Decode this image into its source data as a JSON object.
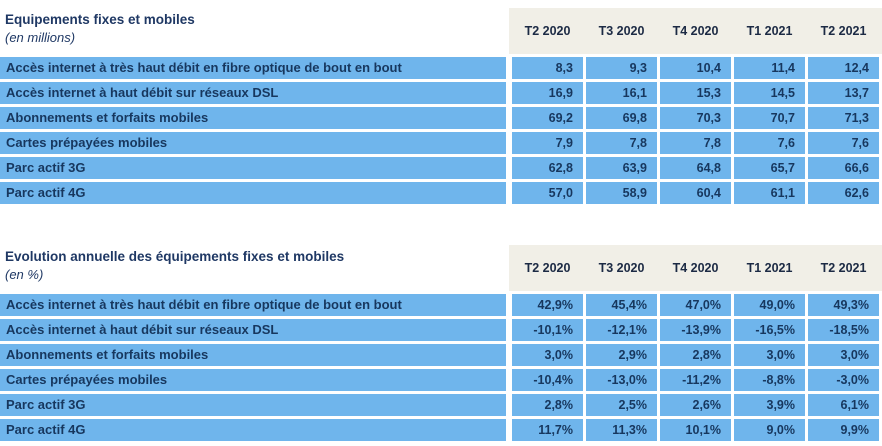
{
  "colors": {
    "cell_blue": "#6fb5ec",
    "header_cream": "#f1efe7",
    "row_text_navy": "#17375e",
    "title_navy": "#1f3864",
    "quarter_header_text": "#1c2a44"
  },
  "tables": [
    {
      "title": "Equipements fixes et mobiles",
      "subtitle": "(en millions)",
      "columns": [
        "T2 2020",
        "T3 2020",
        "T4 2020",
        "T1 2021",
        "T2 2021"
      ],
      "rows": [
        {
          "label": "Accès internet à très haut débit en fibre optique de bout en bout",
          "values": [
            "8,3",
            "9,3",
            "10,4",
            "11,4",
            "12,4"
          ]
        },
        {
          "label": "Accès internet à haut débit sur réseaux DSL",
          "values": [
            "16,9",
            "16,1",
            "15,3",
            "14,5",
            "13,7"
          ]
        },
        {
          "label": "Abonnements et forfaits mobiles",
          "values": [
            "69,2",
            "69,8",
            "70,3",
            "70,7",
            "71,3"
          ]
        },
        {
          "label": "Cartes prépayées mobiles",
          "values": [
            "7,9",
            "7,8",
            "7,8",
            "7,6",
            "7,6"
          ]
        },
        {
          "label": "Parc actif 3G",
          "values": [
            "62,8",
            "63,9",
            "64,8",
            "65,7",
            "66,6"
          ]
        },
        {
          "label": "Parc actif 4G",
          "values": [
            "57,0",
            "58,9",
            "60,4",
            "61,1",
            "62,6"
          ]
        }
      ]
    },
    {
      "title": "Evolution annuelle des équipements fixes et mobiles",
      "subtitle": "(en %)",
      "columns": [
        "T2 2020",
        "T3 2020",
        "T4 2020",
        "T1 2021",
        "T2 2021"
      ],
      "rows": [
        {
          "label": "Accès internet à très haut débit en fibre optique de bout en bout",
          "values": [
            "42,9%",
            "45,4%",
            "47,0%",
            "49,0%",
            "49,3%"
          ]
        },
        {
          "label": "Accès internet à haut débit sur réseaux DSL",
          "values": [
            "-10,1%",
            "-12,1%",
            "-13,9%",
            "-16,5%",
            "-18,5%"
          ]
        },
        {
          "label": "Abonnements et forfaits mobiles",
          "values": [
            "3,0%",
            "2,9%",
            "2,8%",
            "3,0%",
            "3,0%"
          ]
        },
        {
          "label": "Cartes prépayées mobiles",
          "values": [
            "-10,4%",
            "-13,0%",
            "-11,2%",
            "-8,8%",
            "-3,0%"
          ]
        },
        {
          "label": "Parc actif 3G",
          "values": [
            "2,8%",
            "2,5%",
            "2,6%",
            "3,9%",
            "6,1%"
          ]
        },
        {
          "label": "Parc actif 4G",
          "values": [
            "11,7%",
            "11,3%",
            "10,1%",
            "9,0%",
            "9,9%"
          ]
        }
      ]
    }
  ]
}
